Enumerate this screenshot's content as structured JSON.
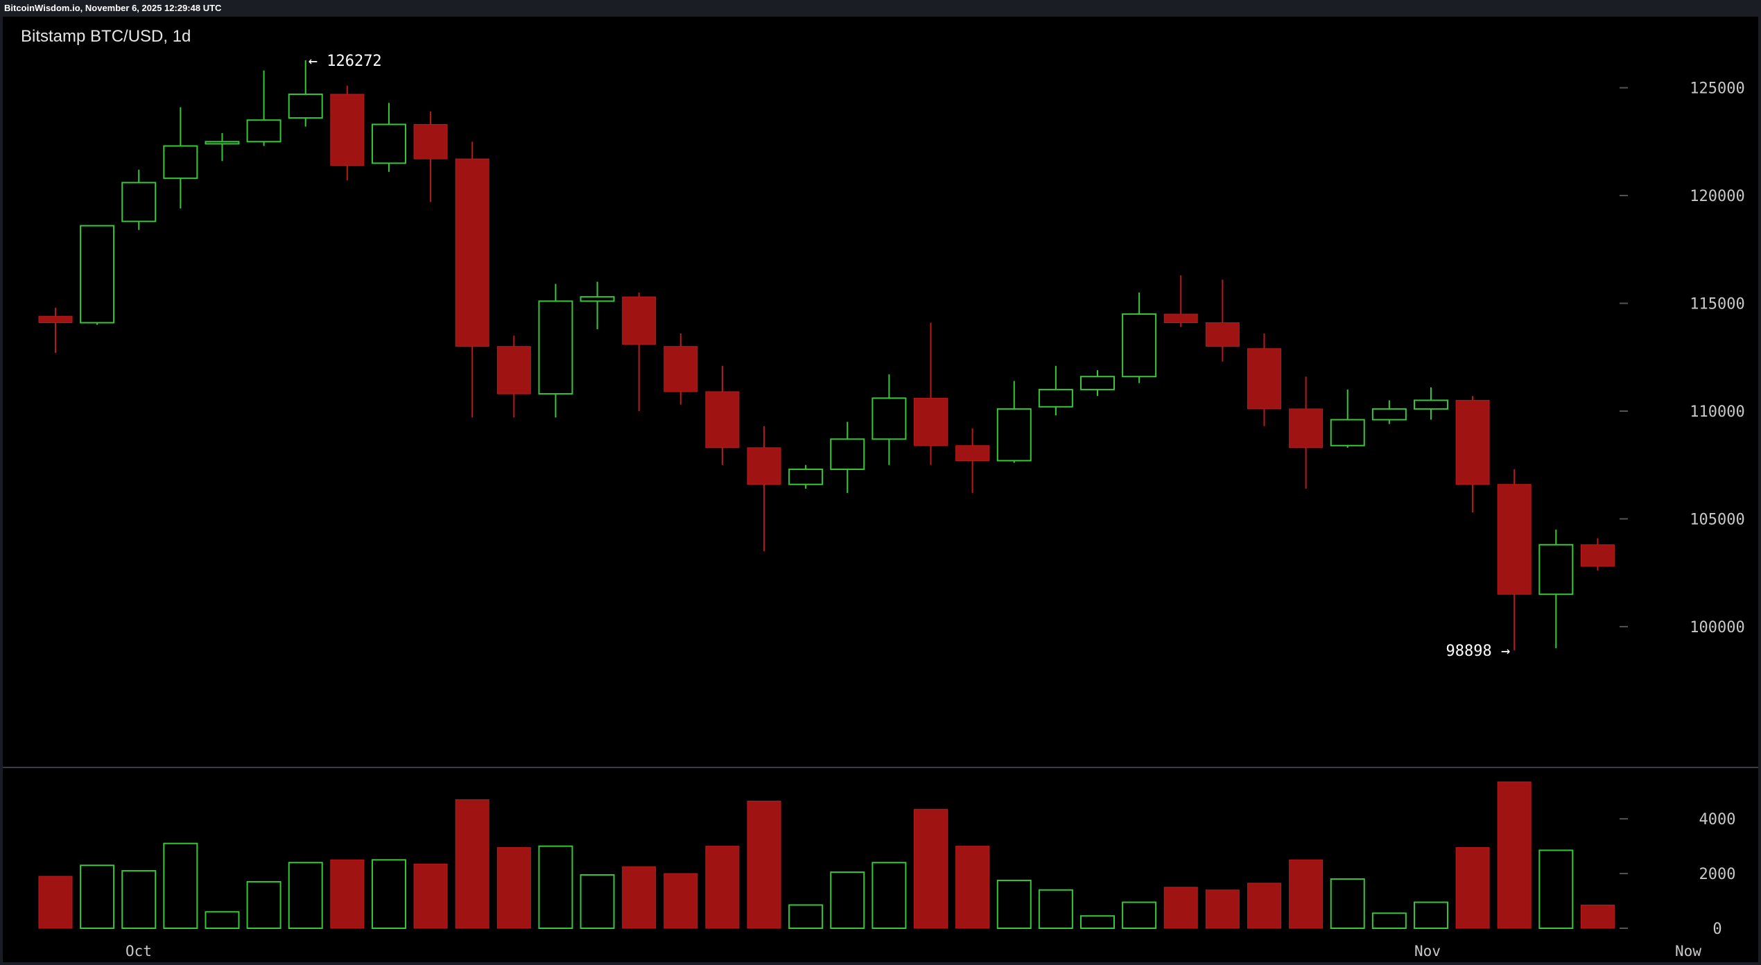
{
  "header": {
    "timestamp_label": "BitcoinWisdom.io, November 6, 2025 12:29:48 UTC"
  },
  "chart_title": "Bitstamp BTC/USD, 1d",
  "colors": {
    "up": "#37c837",
    "down": "#a01313",
    "down_edge": "#b81a1a",
    "background": "#000000",
    "frame": "#1b1d25",
    "text": "#ffffff",
    "axis_text": "#c8c8c8"
  },
  "chart_data": [
    {
      "type": "candlestick",
      "title": "Bitstamp BTC/USD, 1d",
      "y_ticks": [
        100000,
        105000,
        110000,
        115000,
        120000,
        125000
      ],
      "y_tick_labels": [
        "100000",
        "105000",
        "110000",
        "115000",
        "120000",
        "125000"
      ],
      "ylim": [
        93500,
        128300
      ],
      "x_tick_labels": [
        "Oct",
        "Nov",
        "Now"
      ],
      "annotations": [
        {
          "label": "← 126272",
          "value": 126272
        },
        {
          "label": "98898 →",
          "value": 98898
        }
      ],
      "grid": false,
      "candles": [
        {
          "o": 114400,
          "h": 114800,
          "l": 112700,
          "c": 114100
        },
        {
          "o": 114100,
          "h": 118600,
          "l": 114000,
          "c": 118600
        },
        {
          "o": 118800,
          "h": 121200,
          "l": 118400,
          "c": 120600
        },
        {
          "o": 120800,
          "h": 124100,
          "l": 119400,
          "c": 122300
        },
        {
          "o": 122400,
          "h": 122900,
          "l": 121600,
          "c": 122500
        },
        {
          "o": 122500,
          "h": 125800,
          "l": 122300,
          "c": 123500
        },
        {
          "o": 123600,
          "h": 126272,
          "l": 123200,
          "c": 124700
        },
        {
          "o": 124700,
          "h": 125100,
          "l": 120700,
          "c": 121400
        },
        {
          "o": 121500,
          "h": 124300,
          "l": 121100,
          "c": 123300
        },
        {
          "o": 123300,
          "h": 123900,
          "l": 119700,
          "c": 121700
        },
        {
          "o": 121700,
          "h": 122500,
          "l": 109700,
          "c": 113000
        },
        {
          "o": 113000,
          "h": 113500,
          "l": 109700,
          "c": 110800
        },
        {
          "o": 110800,
          "h": 115900,
          "l": 109700,
          "c": 115100
        },
        {
          "o": 115100,
          "h": 116000,
          "l": 113800,
          "c": 115300
        },
        {
          "o": 115300,
          "h": 115500,
          "l": 110000,
          "c": 113100
        },
        {
          "o": 113000,
          "h": 113600,
          "l": 110300,
          "c": 110900
        },
        {
          "o": 110900,
          "h": 112100,
          "l": 107500,
          "c": 108300
        },
        {
          "o": 108300,
          "h": 109300,
          "l": 103500,
          "c": 106600
        },
        {
          "o": 106600,
          "h": 107500,
          "l": 106400,
          "c": 107300
        },
        {
          "o": 107300,
          "h": 109500,
          "l": 106200,
          "c": 108700
        },
        {
          "o": 108700,
          "h": 111700,
          "l": 107500,
          "c": 110600
        },
        {
          "o": 110600,
          "h": 114100,
          "l": 107500,
          "c": 108400
        },
        {
          "o": 108400,
          "h": 109200,
          "l": 106200,
          "c": 107700
        },
        {
          "o": 107700,
          "h": 111400,
          "l": 107600,
          "c": 110100
        },
        {
          "o": 110200,
          "h": 112100,
          "l": 109800,
          "c": 111000
        },
        {
          "o": 111000,
          "h": 111900,
          "l": 110700,
          "c": 111600
        },
        {
          "o": 111600,
          "h": 115500,
          "l": 111300,
          "c": 114500
        },
        {
          "o": 114500,
          "h": 116300,
          "l": 113900,
          "c": 114100
        },
        {
          "o": 114100,
          "h": 116100,
          "l": 112300,
          "c": 113000
        },
        {
          "o": 112900,
          "h": 113600,
          "l": 109300,
          "c": 110100
        },
        {
          "o": 110100,
          "h": 111600,
          "l": 106400,
          "c": 108300
        },
        {
          "o": 108400,
          "h": 111000,
          "l": 108300,
          "c": 109600
        },
        {
          "o": 109600,
          "h": 110500,
          "l": 109400,
          "c": 110100
        },
        {
          "o": 110100,
          "h": 111100,
          "l": 109600,
          "c": 110500
        },
        {
          "o": 110500,
          "h": 110700,
          "l": 105300,
          "c": 106600
        },
        {
          "o": 106600,
          "h": 107300,
          "l": 98898,
          "c": 101500
        },
        {
          "o": 101500,
          "h": 104500,
          "l": 99000,
          "c": 103800
        },
        {
          "o": 103800,
          "h": 104100,
          "l": 102600,
          "c": 102800
        }
      ]
    },
    {
      "type": "bar",
      "title": "",
      "y_ticks": [
        0,
        2000,
        4000
      ],
      "y_tick_labels": [
        "0",
        "2000",
        "4000"
      ],
      "ylim": [
        0,
        5600
      ],
      "grid": false,
      "values": [
        1900,
        2300,
        2100,
        3100,
        600,
        1700,
        2400,
        2500,
        2500,
        2350,
        4700,
        2950,
        3000,
        1950,
        2250,
        2000,
        3000,
        4650,
        850,
        2050,
        2400,
        4350,
        3000,
        1750,
        1400,
        450,
        950,
        1500,
        1400,
        1650,
        2500,
        1800,
        550,
        950,
        2950,
        5350,
        2850,
        850
      ]
    }
  ]
}
